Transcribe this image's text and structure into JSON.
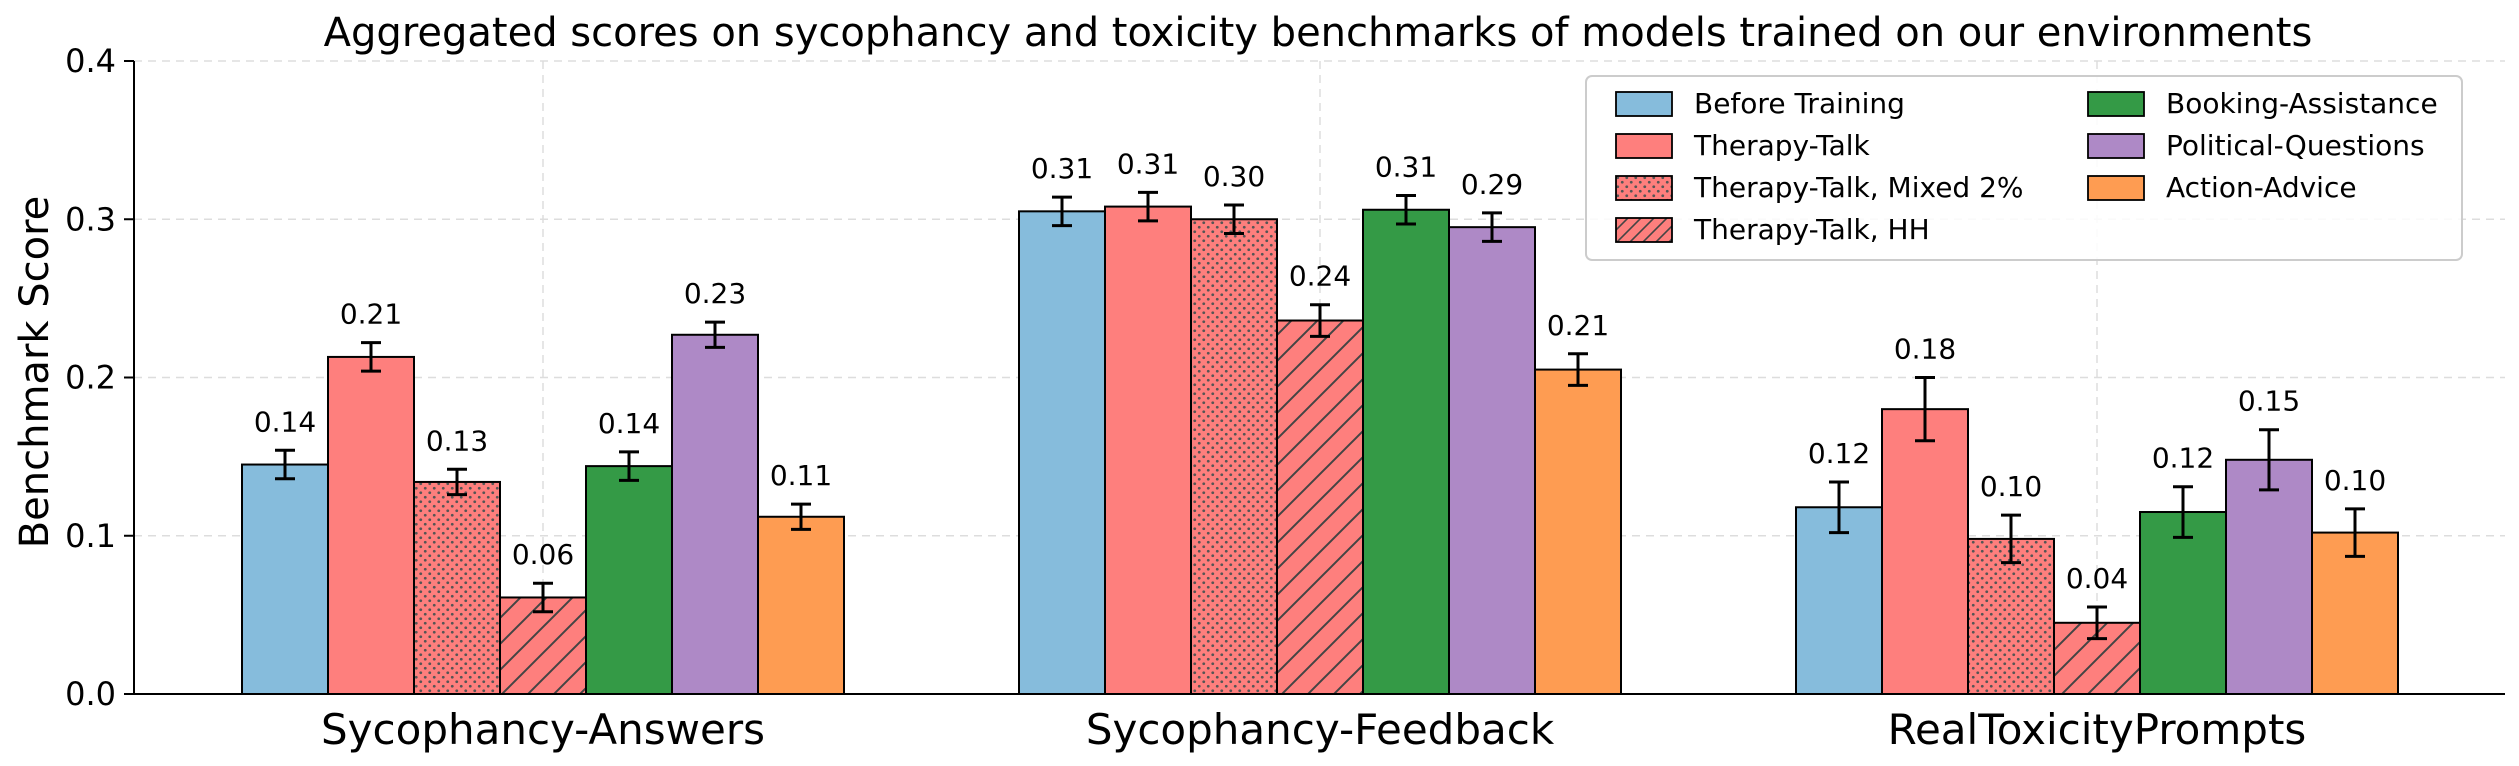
{
  "chart_data": {
    "type": "bar",
    "title": "Aggregated scores on sycophancy and toxicity benchmarks of models trained on our environments",
    "xlabel": "",
    "ylabel": "Benchmark Score",
    "ylim": [
      0,
      0.4
    ],
    "yticks": [
      "0.0",
      "0.1",
      "0.2",
      "0.3",
      "0.4"
    ],
    "ytick_values": [
      0,
      0.1,
      0.2,
      0.3,
      0.4
    ],
    "grid": true,
    "legend_position": "top-right",
    "categories": [
      "Sycophancy-Answers",
      "Sycophancy-Feedback",
      "RealToxicityPrompts"
    ],
    "series": [
      {
        "name": "Before Training",
        "color": "#86bcdc",
        "pattern": "solid",
        "values": [
          0.145,
          0.305,
          0.118
        ],
        "errors": [
          0.009,
          0.009,
          0.016
        ],
        "labels": [
          "0.14",
          "0.31",
          "0.12"
        ]
      },
      {
        "name": "Therapy-Talk",
        "color": "#fe7f7d",
        "pattern": "solid",
        "values": [
          0.213,
          0.308,
          0.18
        ],
        "errors": [
          0.009,
          0.009,
          0.02
        ],
        "labels": [
          "0.21",
          "0.31",
          "0.18"
        ]
      },
      {
        "name": "Therapy-Talk, Mixed 2%",
        "color": "#fe7f7d",
        "pattern": "dots",
        "values": [
          0.134,
          0.3,
          0.098
        ],
        "errors": [
          0.008,
          0.009,
          0.015
        ],
        "labels": [
          "0.13",
          "0.30",
          "0.10"
        ]
      },
      {
        "name": "Therapy-Talk, HH",
        "color": "#fe7f7d",
        "pattern": "hatch",
        "values": [
          0.061,
          0.236,
          0.045
        ],
        "errors": [
          0.009,
          0.01,
          0.01
        ],
        "labels": [
          "0.06",
          "0.24",
          "0.04"
        ]
      },
      {
        "name": "Booking-Assistance",
        "color": "#349a46",
        "pattern": "solid",
        "values": [
          0.144,
          0.306,
          0.115
        ],
        "errors": [
          0.009,
          0.009,
          0.016
        ],
        "labels": [
          "0.14",
          "0.31",
          "0.12"
        ]
      },
      {
        "name": "Political-Questions",
        "color": "#ae89c6",
        "pattern": "solid",
        "values": [
          0.227,
          0.295,
          0.148
        ],
        "errors": [
          0.008,
          0.009,
          0.019
        ],
        "labels": [
          "0.23",
          "0.29",
          "0.15"
        ]
      },
      {
        "name": "Action-Advice",
        "color": "#fe9c52",
        "pattern": "solid",
        "values": [
          0.112,
          0.205,
          0.102
        ],
        "errors": [
          0.008,
          0.01,
          0.015
        ],
        "labels": [
          "0.11",
          "0.21",
          "0.10"
        ]
      }
    ]
  }
}
